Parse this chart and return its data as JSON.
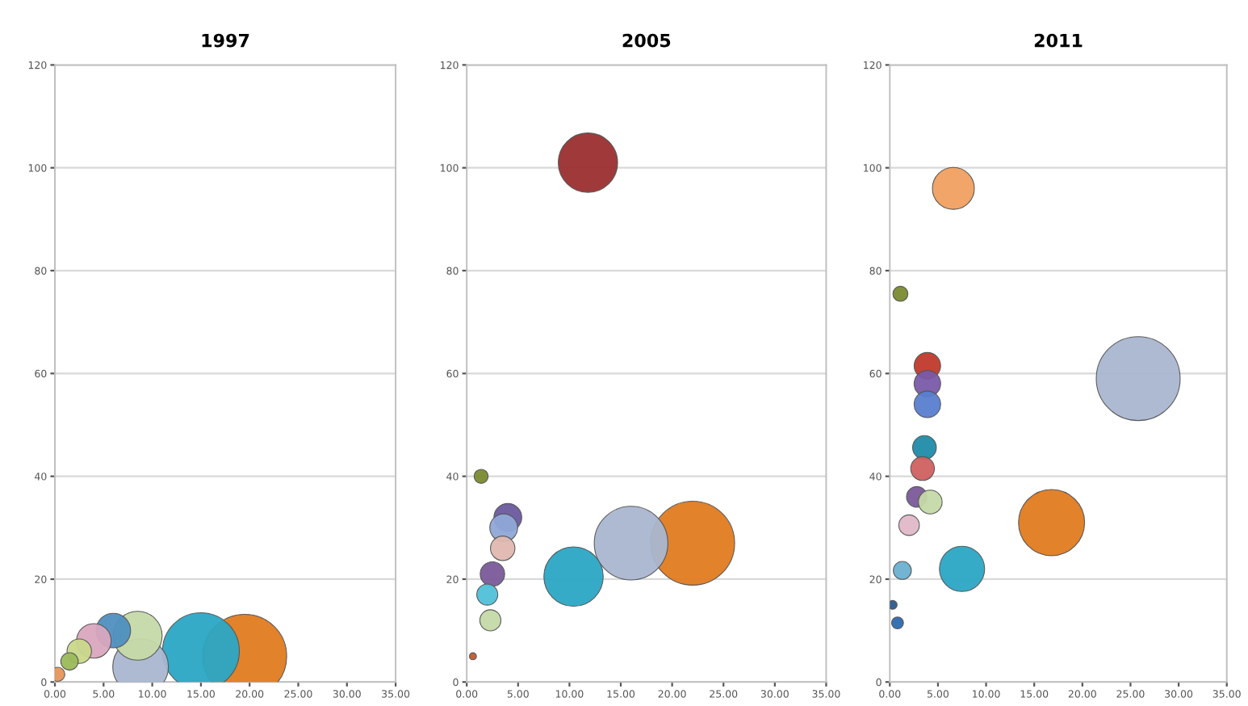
{
  "chart_data": [
    {
      "type": "bubble",
      "title": "1997",
      "xlim": [
        0,
        35
      ],
      "ylim": [
        0,
        120
      ],
      "xticks": [
        {
          "value": 0,
          "label": "0.00"
        },
        {
          "value": 5,
          "label": "5.00"
        },
        {
          "value": 10,
          "label": "10.00"
        },
        {
          "value": 15,
          "label": "15.00"
        },
        {
          "value": 20,
          "label": "20.00"
        },
        {
          "value": 25,
          "label": "25.00"
        },
        {
          "value": 30,
          "label": "30.00"
        },
        {
          "value": 35,
          "label": "35.00"
        }
      ],
      "yticks": [
        0,
        20,
        40,
        60,
        80,
        100,
        120
      ],
      "grid": "y",
      "series": [
        {
          "x": [
            19.5,
            15,
            8.8,
            8.5,
            6,
            4,
            2.5,
            1.5,
            0.3
          ],
          "values": [
            5,
            6,
            3,
            9,
            10,
            8,
            6,
            4,
            1.5
          ],
          "sizes": [
            1,
            0.84,
            0.44,
            0.34,
            0.17,
            0.17,
            0.085,
            0.043,
            0.028
          ],
          "colors": [
            "#e07b20",
            "#2aa6c4",
            "#a9b6d0",
            "#c5d9a8",
            "#4f8fc0",
            "#d9a6be",
            "#c9d88a",
            "#9bbb59",
            "#e8935a"
          ]
        }
      ]
    },
    {
      "type": "bubble",
      "title": "2005",
      "xlim": [
        0,
        35
      ],
      "ylim": [
        0,
        120
      ],
      "xticks": [
        {
          "value": 0,
          "label": "0.00"
        },
        {
          "value": 5,
          "label": "5.00"
        },
        {
          "value": 10,
          "label": "10.00"
        },
        {
          "value": 15,
          "label": "15.00"
        },
        {
          "value": 20,
          "label": "20.00"
        },
        {
          "value": 25,
          "label": "25.00"
        },
        {
          "value": 30,
          "label": "30.00"
        },
        {
          "value": 35,
          "label": "35.00"
        }
      ],
      "yticks": [
        0,
        20,
        40,
        60,
        80,
        100,
        120
      ],
      "grid": "y",
      "series": [
        {
          "x": [
            22,
            16,
            10.4,
            11.8,
            4,
            3.6,
            3.5,
            2.5,
            2,
            2.3,
            1.4,
            0.6
          ],
          "values": [
            27,
            27,
            20.5,
            101,
            32,
            30,
            26,
            21,
            17,
            12,
            40,
            5
          ],
          "sizes": [
            1,
            0.77,
            0.5,
            0.5,
            0.11,
            0.11,
            0.085,
            0.085,
            0.063,
            0.063,
            0.028,
            0.007
          ],
          "colors": [
            "#e07b20",
            "#a9b6d0",
            "#2aa6c4",
            "#9b2f2f",
            "#6a5a9e",
            "#8fa8d8",
            "#e0b8b0",
            "#7a5a9a",
            "#4fc0d8",
            "#c5d9a8",
            "#7a8a30",
            "#c05a30"
          ]
        }
      ]
    },
    {
      "type": "bubble",
      "title": "2011",
      "xlim": [
        0,
        35
      ],
      "ylim": [
        0,
        120
      ],
      "xticks": [
        {
          "value": 0,
          "label": "0.00"
        },
        {
          "value": 5,
          "label": "5.00"
        },
        {
          "value": 10,
          "label": "10.00"
        },
        {
          "value": 15,
          "label": "15.00"
        },
        {
          "value": 20,
          "label": "20.00"
        },
        {
          "value": 25,
          "label": "25.00"
        },
        {
          "value": 30,
          "label": "30.00"
        },
        {
          "value": 35,
          "label": "35.00"
        }
      ],
      "yticks": [
        0,
        20,
        40,
        60,
        80,
        100,
        120
      ],
      "grid": "y",
      "series": [
        {
          "x": [
            25.8,
            16.8,
            7.5,
            6.6,
            3.9,
            3.9,
            3.9,
            3.6,
            3.4,
            2.8,
            4.2,
            2,
            1.3,
            1.1,
            0.3,
            0.8
          ],
          "values": [
            59,
            31,
            22,
            96,
            61.5,
            58,
            54,
            45.6,
            41.5,
            36,
            35,
            30.5,
            21.7,
            75.5,
            15,
            11.5
          ],
          "sizes": [
            1,
            0.62,
            0.29,
            0.25,
            0.1,
            0.1,
            0.1,
            0.08,
            0.08,
            0.06,
            0.08,
            0.06,
            0.046,
            0.032,
            0.011,
            0.02
          ],
          "colors": [
            "#a9b6d0",
            "#e07b20",
            "#2aa6c4",
            "#f0a060",
            "#c0392b",
            "#7a5aa8",
            "#5a7ed0",
            "#1f8ca8",
            "#d06060",
            "#7a5a9a",
            "#c5d9a8",
            "#e0b8c8",
            "#6ab0d0",
            "#7a8a30",
            "#2a5a90",
            "#2a6ab0"
          ]
        }
      ]
    }
  ]
}
